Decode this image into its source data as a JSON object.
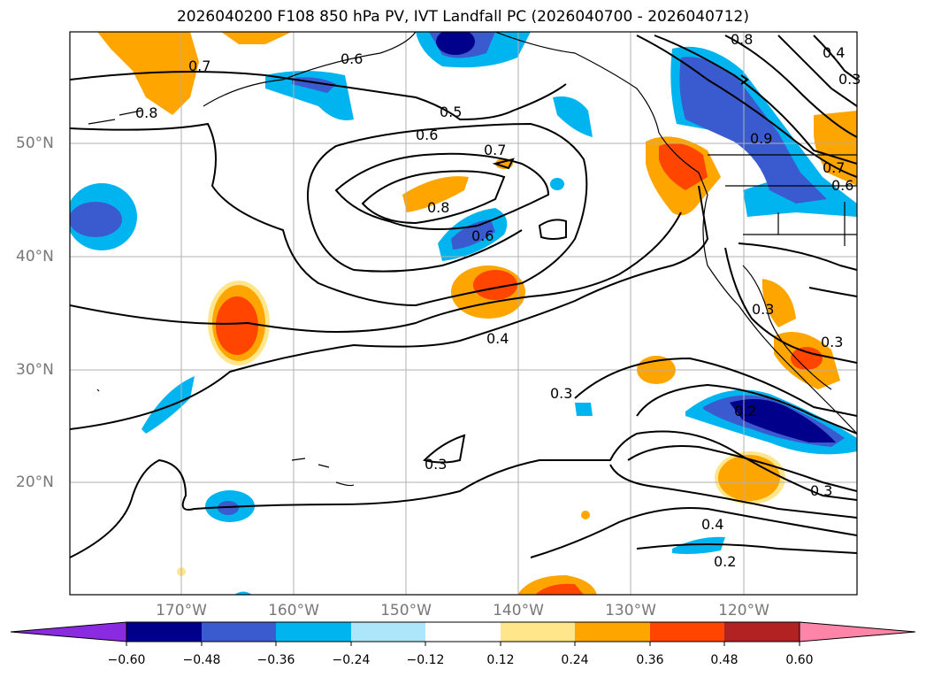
{
  "title": "2026040200 F108 850 hPa PV, IVT Landfall PC (2026040700 - 2026040712)",
  "map": {
    "lat_labels": [
      "50°N",
      "40°N",
      "30°N",
      "20°N"
    ],
    "lon_labels": [
      "170°W",
      "160°W",
      "150°W",
      "140°W",
      "130°W",
      "120°W"
    ]
  },
  "contour_labels": [
    "0.7",
    "0.8",
    "0.6",
    "0.5",
    "0.6",
    "0.7",
    "0.8",
    "0.6",
    "0.4",
    "0.3",
    "0.3",
    "0.2",
    "0.3",
    "0.4",
    "0.2",
    "0.9",
    "0.7",
    "0.6",
    "0.3",
    "0.3",
    "0.4",
    "0.3",
    "0.8"
  ],
  "colorbar": {
    "ticks": [
      "−0.60",
      "−0.48",
      "−0.36",
      "−0.24",
      "−0.12",
      "0.12",
      "0.24",
      "0.36",
      "0.48",
      "0.60"
    ],
    "colors": [
      "#8a2be2",
      "#00008b",
      "#3a5bd0",
      "#00b4f0",
      "#ade6fa",
      "#ffffff",
      "#ffe68a",
      "#ffa500",
      "#ff4500",
      "#b22222",
      "#ff85a8"
    ]
  }
}
